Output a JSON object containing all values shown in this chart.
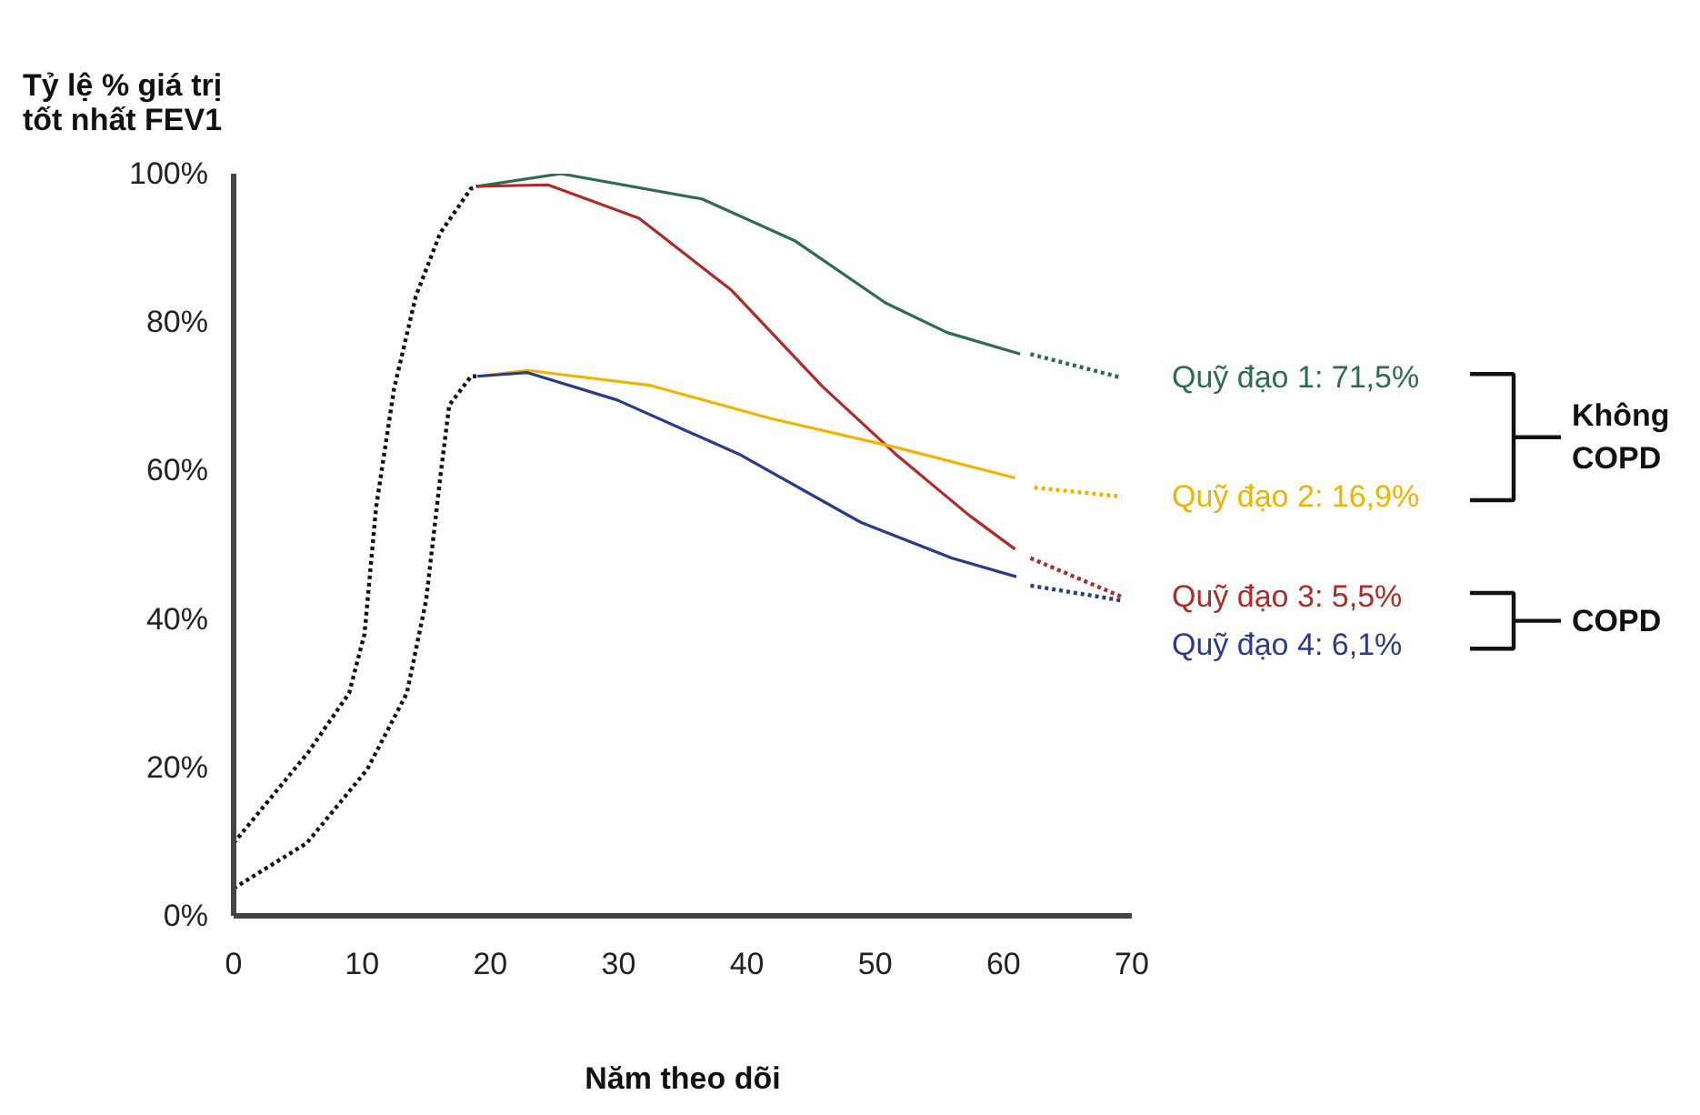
{
  "chart_data": {
    "type": "line",
    "ylabel": "Tỷ lệ % giá trị tốt nhất FEV1",
    "xlabel": "Năm theo dõi",
    "xlim": [
      0,
      70
    ],
    "xticks": [
      0,
      10,
      20,
      30,
      40,
      50,
      60,
      70
    ],
    "ylim": [
      0,
      100
    ],
    "yticks": [
      {
        "value": 0,
        "label": "0%"
      },
      {
        "value": 20,
        "label": "20%"
      },
      {
        "value": 40,
        "label": "40%"
      },
      {
        "value": 60,
        "label": "60%"
      },
      {
        "value": 80,
        "label": "80%"
      },
      {
        "value": 100,
        "label": "100%"
      }
    ],
    "grid": false,
    "marker": "none",
    "series": [
      {
        "color": "#111111",
        "line_style": "dotted",
        "x": [
          0,
          5.8,
          9,
          10.2,
          11.1,
          12.5,
          14.2,
          16.1,
          18.5,
          19
        ],
        "values": [
          9.8,
          22,
          30,
          38,
          55,
          71,
          83.5,
          92,
          98,
          98.3
        ]
      },
      {
        "color": "#111111",
        "line_style": "dotted",
        "x": [
          0,
          5.7,
          10.4,
          13.5,
          15,
          16.1,
          16.8,
          18.5,
          19
        ],
        "values": [
          3.7,
          9.8,
          19.7,
          30,
          42.5,
          59,
          68.8,
          72.7,
          72.7
        ]
      },
      {
        "color": "#2f6b4f",
        "line_style": "solid",
        "x": [
          19,
          25.5,
          36.5,
          43.7,
          50.8,
          55.6,
          61.3
        ],
        "values": [
          98.3,
          100,
          96.6,
          91,
          82.6,
          78.6,
          75.7
        ]
      },
      {
        "color": "#b02a2a",
        "line_style": "solid",
        "x": [
          19,
          24.5,
          31.6,
          38.8,
          45.9,
          51.6,
          57.3,
          60.9
        ],
        "values": [
          98.3,
          98.5,
          94,
          84.3,
          71.3,
          62.2,
          54,
          49.4
        ]
      },
      {
        "color": "#f0b400",
        "line_style": "solid",
        "x": [
          19,
          22.9,
          32.4,
          41.9,
          51.9,
          60.9
        ],
        "values": [
          72.7,
          73.5,
          71.5,
          67,
          63,
          59
        ]
      },
      {
        "color": "#2b3a8c",
        "line_style": "solid",
        "x": [
          19,
          22.9,
          29.9,
          39.4,
          48.9,
          56,
          61
        ],
        "values": [
          72.7,
          73.2,
          69.5,
          62.2,
          53,
          48.2,
          45.7
        ]
      },
      {
        "name": "Quỹ đạo 1: 71,5%",
        "color": "#2f6b4f",
        "line_style": "dotted",
        "x": [
          62.1,
          69.2
        ],
        "values": [
          75.7,
          72.5
        ]
      },
      {
        "name": "Quỹ đạo 2: 16,9%",
        "color": "#f0b400",
        "line_style": "dotted",
        "x": [
          62.4,
          69.2
        ],
        "values": [
          57.7,
          56.5
        ]
      },
      {
        "name": "Quỹ đạo 3: 5,5%",
        "color": "#b02a2a",
        "line_style": "dotted",
        "x": [
          62.1,
          69.2
        ],
        "values": [
          48.2,
          43
        ]
      },
      {
        "name": "Quỹ đạo 4: 6,1%",
        "color": "#2b3a8c",
        "line_style": "dotted",
        "x": [
          62.1,
          69.2
        ],
        "values": [
          44.5,
          42.5
        ]
      }
    ],
    "annotations": [
      "Không COPD",
      "COPD"
    ]
  }
}
